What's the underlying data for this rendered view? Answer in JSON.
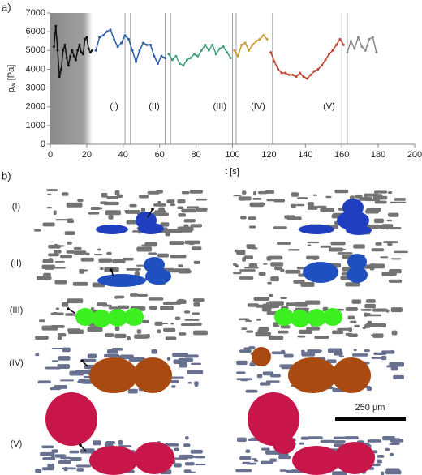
{
  "panel_a_label": "a)",
  "chart_data": {
    "type": "line",
    "ylabel": {
      "main": "p",
      "sub": "w",
      "unit": " [Pa]"
    },
    "xlabel": "t [s]",
    "xlim": [
      0,
      200
    ],
    "xticks": [
      0,
      20,
      40,
      60,
      80,
      100,
      120,
      140,
      160,
      180,
      200
    ],
    "ylim": [
      0,
      7000
    ],
    "yticks": [
      0,
      1000,
      2000,
      3000,
      4000,
      5000,
      6000,
      7000
    ],
    "shaded_xrange": [
      0,
      23
    ],
    "vlines": [
      41,
      44,
      63,
      66,
      100,
      102,
      120,
      122,
      160,
      163
    ],
    "annotations": [
      {
        "text": "(I)",
        "x": 35,
        "y": 2000
      },
      {
        "text": "(II)",
        "x": 57,
        "y": 2000
      },
      {
        "text": "(III)",
        "x": 93,
        "y": 2000
      },
      {
        "text": "(IV)",
        "x": 114,
        "y": 2000
      },
      {
        "text": "(V)",
        "x": 153,
        "y": 2000
      }
    ],
    "series": [
      {
        "color": "#111111",
        "x": [
          2,
          3,
          4,
          5,
          6,
          7,
          8,
          9,
          10,
          11,
          12,
          13,
          14,
          15,
          16,
          17,
          18,
          19,
          20,
          21,
          22,
          23
        ],
        "values": [
          5200,
          6300,
          5000,
          3600,
          4000,
          5000,
          5300,
          4600,
          4200,
          4700,
          5000,
          4700,
          4500,
          5000,
          5300,
          4900,
          4800,
          5600,
          5700,
          5100,
          4900,
          5000
        ]
      },
      {
        "color": "#2a5caa",
        "x": [
          25,
          27,
          29,
          31,
          33,
          35,
          37,
          39,
          41,
          43,
          45,
          47,
          49,
          51,
          53,
          55,
          57,
          59,
          61,
          63
        ],
        "values": [
          5000,
          5700,
          5800,
          6000,
          6100,
          5600,
          5200,
          5400,
          5800,
          5600,
          5000,
          4400,
          5000,
          5400,
          5300,
          5300,
          4700,
          4300,
          4700,
          4600
        ]
      },
      {
        "color": "#3f9f78",
        "x": [
          65,
          67,
          69,
          71,
          73,
          75,
          77,
          79,
          81,
          83,
          85,
          87,
          89,
          91,
          93,
          95,
          97,
          99
        ],
        "values": [
          4800,
          4500,
          4700,
          4300,
          4200,
          4500,
          4600,
          4800,
          4700,
          5000,
          5300,
          5000,
          5300,
          4800,
          5100,
          5200,
          4900,
          4600
        ]
      },
      {
        "color": "#c89a28",
        "x": [
          101,
          103,
          105,
          107,
          109,
          111,
          113,
          115,
          117,
          119
        ],
        "values": [
          5000,
          4700,
          5300,
          5400,
          5000,
          5300,
          5500,
          5600,
          5800,
          5600
        ]
      },
      {
        "color": "#c0442e",
        "x": [
          121,
          123,
          125,
          127,
          129,
          131,
          133,
          135,
          137,
          139,
          141,
          143,
          145,
          147,
          149,
          151,
          153,
          155,
          157,
          159,
          161
        ],
        "values": [
          4900,
          4400,
          4000,
          3800,
          3800,
          3700,
          3700,
          3600,
          3800,
          3600,
          3500,
          3700,
          3900,
          4000,
          4200,
          4500,
          4800,
          5000,
          5300,
          5600,
          5300
        ]
      },
      {
        "color": "#8a8a8a",
        "x": [
          163,
          165,
          167,
          169,
          171,
          173,
          175,
          177,
          179
        ],
        "values": [
          4900,
          5500,
          5100,
          5700,
          5200,
          5000,
          5600,
          5700,
          4900
        ]
      }
    ]
  },
  "panel_b": {
    "label": "b)",
    "rows": [
      "(I)",
      "(II)",
      "(III)",
      "(IV)",
      "(V)"
    ],
    "scale_bar": "250 µm"
  }
}
